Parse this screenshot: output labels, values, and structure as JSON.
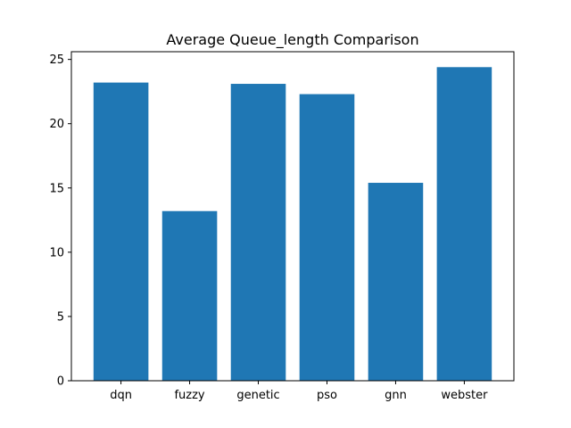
{
  "chart_data": {
    "type": "bar",
    "title": "Average Queue_length Comparison",
    "xlabel": "",
    "ylabel": "",
    "categories": [
      "dqn",
      "fuzzy",
      "genetic",
      "pso",
      "gnn",
      "webster"
    ],
    "values": [
      23.2,
      13.2,
      23.1,
      22.3,
      15.4,
      24.4
    ],
    "ylim": [
      0,
      25.6
    ],
    "yticks": [
      0,
      5,
      10,
      15,
      20,
      25
    ],
    "grid": false,
    "bar_color": "#1f77b4"
  }
}
